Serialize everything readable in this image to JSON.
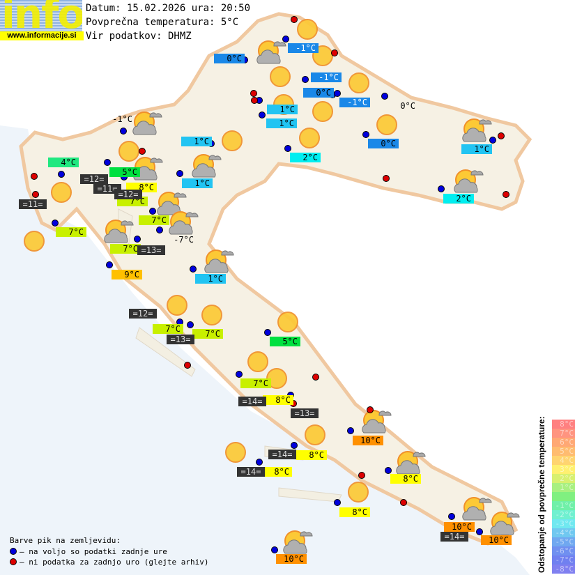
{
  "header": {
    "logo_text": "info",
    "url": "www.informacije.si",
    "date_line": "Datum: 15.02.2026 ura: 20:50",
    "avg_line": "Povprečna temperatura: 5°C",
    "source_line": "Vir podatkov: DHMZ"
  },
  "colors": {
    "available": "#0000dd",
    "missing": "#dd0000",
    "sea_label_bg": "#333333"
  },
  "stations": [
    {
      "t": "0°C",
      "bg": "#1a88e8"
    },
    {
      "t": "-1°C",
      "bg": "#1a88e8",
      "fg": "#fff"
    },
    {
      "t": "-1°C",
      "bg": "#1a88e8",
      "fg": "#fff"
    },
    {
      "t": "0°C",
      "bg": "#1a88e8"
    },
    {
      "t": "-1°C",
      "bg": "#1a88e8",
      "fg": "#fff"
    },
    {
      "t": "0°C",
      "bg": ""
    },
    {
      "t": "1°C",
      "bg": "#22c4f2"
    },
    {
      "t": "1°C",
      "bg": "#22c4f2"
    },
    {
      "t": "0°C",
      "bg": "#1a88e8"
    },
    {
      "t": "2°C",
      "bg": "#00eef0"
    },
    {
      "t": "1°C",
      "bg": "#22c4f2"
    },
    {
      "t": "1°C",
      "bg": "#22c4f2"
    },
    {
      "t": "1°C",
      "bg": "#22c4f2"
    },
    {
      "t": "2°C",
      "bg": "#00eef0"
    },
    {
      "t": "-1°C",
      "bg": ""
    },
    {
      "t": "4°C",
      "bg": "#20e880"
    },
    {
      "t": "5°C",
      "bg": "#00e040"
    },
    {
      "t": "8°C",
      "bg": "#ffff00"
    },
    {
      "t": "7°C",
      "bg": "#c8f000"
    },
    {
      "t": "7°C",
      "bg": "#c8f000"
    },
    {
      "t": "7°C",
      "bg": "#c8f000"
    },
    {
      "t": "-7°C",
      "bg": ""
    },
    {
      "t": "7°C",
      "bg": "#c8f000"
    },
    {
      "t": "9°C",
      "bg": "#ffc000"
    },
    {
      "t": "1°C",
      "bg": "#22c4f2"
    },
    {
      "t": "7°C",
      "bg": "#c8f000"
    },
    {
      "t": "7°C",
      "bg": "#c8f000"
    },
    {
      "t": "5°C",
      "bg": "#00e040"
    },
    {
      "t": "7°C",
      "bg": "#c8f000"
    },
    {
      "t": "8°C",
      "bg": "#ffff00"
    },
    {
      "t": "10°C",
      "bg": "#ff9000"
    },
    {
      "t": "8°C",
      "bg": "#ffff00"
    },
    {
      "t": "8°C",
      "bg": "#ffff00"
    },
    {
      "t": "8°C",
      "bg": "#ffff00"
    },
    {
      "t": "8°C",
      "bg": "#ffff00"
    },
    {
      "t": "10°C",
      "bg": "#ff9000"
    },
    {
      "t": "10°C",
      "bg": "#ff9000"
    },
    {
      "t": "10°C",
      "bg": "#ff9000"
    }
  ],
  "sea_temps": [
    "=12=",
    "=11=",
    "=12=",
    "=11=",
    "=13=",
    "=12=",
    "=13=",
    "=14=",
    "=13=",
    "=14=",
    "=14=",
    "=14="
  ],
  "legend": {
    "title": "Barve pik na zemljevidu:",
    "available": "– na voljo so podatki zadnje ure",
    "missing": "– ni podatka za zadnjo uro (glejte arhiv)"
  },
  "scale": {
    "title": "Odstopanje od povprečne temperature:",
    "items": [
      {
        "t": "8°C",
        "c": "#ff8080"
      },
      {
        "t": "7°C",
        "c": "#ff9480"
      },
      {
        "t": "6°C",
        "c": "#ffa874"
      },
      {
        "t": "5°C",
        "c": "#ffbc70"
      },
      {
        "t": "4°C",
        "c": "#ffd470"
      },
      {
        "t": "3°C",
        "c": "#fff070"
      },
      {
        "t": "2°C",
        "c": "#d8f070"
      },
      {
        "t": "1°C",
        "c": "#a8f080"
      },
      {
        "t": "",
        "c": "#80f080"
      },
      {
        "t": "-1°C",
        "c": "#70f0a8"
      },
      {
        "t": "-2°C",
        "c": "#70f0d0"
      },
      {
        "t": "-3°C",
        "c": "#70e8f0"
      },
      {
        "t": "-4°C",
        "c": "#70c8f0"
      },
      {
        "t": "-5°C",
        "c": "#70a8f0"
      },
      {
        "t": "-6°C",
        "c": "#7090f0"
      },
      {
        "t": "-7°C",
        "c": "#7080f0"
      },
      {
        "t": "-8°C",
        "c": "#8080f0"
      }
    ]
  },
  "icons": {
    "sun": "sun-icon",
    "partly_cloudy": "sun-behind-cloud-icon"
  }
}
